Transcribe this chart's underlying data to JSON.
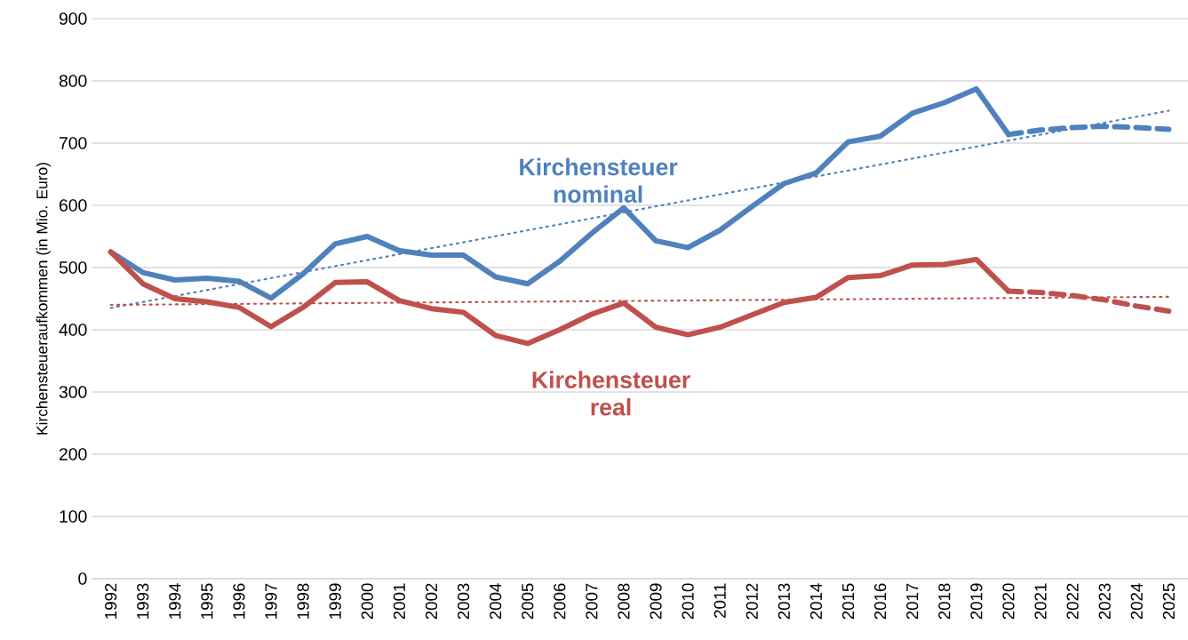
{
  "chart_data": {
    "type": "line",
    "ylabel": "Kirchensteueraufkommen (in Mio. Euro)",
    "categories": [
      "1992",
      "1993",
      "1994",
      "1995",
      "1996",
      "1997",
      "1998",
      "1999",
      "2000",
      "2001",
      "2002",
      "2003",
      "2004",
      "2005",
      "2006",
      "2007",
      "2008",
      "2009",
      "2010",
      "2011",
      "2012",
      "2013",
      "2014",
      "2015",
      "2016",
      "2017",
      "2018",
      "2019",
      "2020",
      "2021",
      "2022",
      "2023",
      "2024",
      "2025"
    ],
    "ylim": [
      0,
      900
    ],
    "yticks": [
      0,
      100,
      200,
      300,
      400,
      500,
      600,
      700,
      800,
      900
    ],
    "grid": "y",
    "legend": false,
    "series": [
      {
        "name": "Kirchensteuer nominal",
        "color": "#4f81bd",
        "line_style": "solid",
        "values": [
          525,
          492,
          480,
          483,
          478,
          451,
          490,
          538,
          550,
          527,
          520,
          520,
          485,
          474,
          510,
          555,
          596,
          543,
          532,
          560,
          598,
          635,
          652,
          702,
          711,
          748,
          765,
          787,
          714,
          null,
          null,
          null,
          null,
          null
        ]
      },
      {
        "color": "#4f81bd",
        "line_style": "dashed",
        "values": [
          null,
          null,
          null,
          null,
          null,
          null,
          null,
          null,
          null,
          null,
          null,
          null,
          null,
          null,
          null,
          null,
          null,
          null,
          null,
          null,
          null,
          null,
          null,
          null,
          null,
          null,
          null,
          null,
          714,
          721,
          725,
          727,
          725,
          722
        ]
      },
      {
        "color": "#4f81bd",
        "line_style": "dotted",
        "values": [
          435,
          null,
          null,
          null,
          null,
          null,
          null,
          null,
          null,
          null,
          null,
          null,
          null,
          null,
          null,
          null,
          null,
          null,
          null,
          null,
          null,
          null,
          null,
          null,
          null,
          null,
          null,
          null,
          null,
          null,
          null,
          null,
          null,
          752
        ]
      },
      {
        "name": "Kirchensteuer real",
        "color": "#c0504d",
        "line_style": "solid",
        "values": [
          525,
          474,
          450,
          445,
          436,
          405,
          436,
          476,
          477,
          447,
          434,
          428,
          391,
          378,
          400,
          425,
          443,
          404,
          392,
          404,
          424,
          444,
          452,
          484,
          487,
          504,
          505,
          513,
          462,
          null,
          null,
          null,
          null,
          null
        ]
      },
      {
        "color": "#c0504d",
        "line_style": "dashed",
        "values": [
          null,
          null,
          null,
          null,
          null,
          null,
          null,
          null,
          null,
          null,
          null,
          null,
          null,
          null,
          null,
          null,
          null,
          null,
          null,
          null,
          null,
          null,
          null,
          null,
          null,
          null,
          null,
          null,
          462,
          460,
          455,
          448,
          438,
          430
        ]
      },
      {
        "color": "#c0504d",
        "line_style": "dotted",
        "values": [
          440,
          null,
          null,
          null,
          null,
          null,
          null,
          null,
          null,
          null,
          null,
          null,
          null,
          null,
          null,
          null,
          null,
          null,
          null,
          null,
          null,
          null,
          null,
          null,
          null,
          null,
          null,
          null,
          null,
          null,
          null,
          null,
          null,
          453
        ]
      }
    ]
  }
}
